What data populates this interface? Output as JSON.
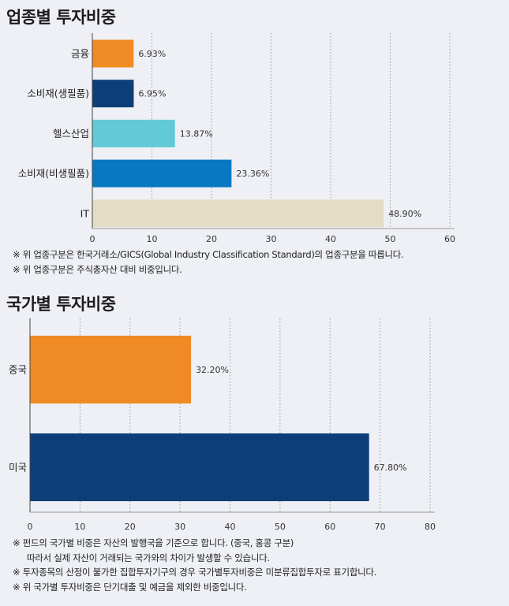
{
  "chart_data": [
    {
      "type": "bar",
      "orientation": "horizontal",
      "title": "업종별 투자비중",
      "categories": [
        "금융",
        "소비재(생필품)",
        "헬스산업",
        "소비재(비생필품)",
        "IT"
      ],
      "values": [
        6.93,
        6.95,
        13.87,
        23.36,
        48.9
      ],
      "value_labels": [
        "6.93%",
        "6.95%",
        "13.87%",
        "23.36%",
        "48.90%"
      ],
      "colors": [
        "#f08a24",
        "#0c3f78",
        "#62c9d7",
        "#0a77c2",
        "#e2ddc4"
      ],
      "xlim": [
        0,
        60
      ],
      "xticks": [
        0,
        10,
        20,
        30,
        40,
        50,
        60
      ],
      "grid": true,
      "notes": [
        "※ 위 업종구분은 한국거래소/GICS(Global Industry Classification Standard)의 업종구분을 따릅니다.",
        "※ 위 업종구분은 주식총자산 대비 비중입니다."
      ]
    },
    {
      "type": "bar",
      "orientation": "horizontal",
      "title": "국가별 투자비중",
      "categories": [
        "중국",
        "미국"
      ],
      "values": [
        32.2,
        67.8
      ],
      "value_labels": [
        "32.20%",
        "67.80%"
      ],
      "colors": [
        "#f08a24",
        "#0c3f78"
      ],
      "xlim": [
        0,
        80
      ],
      "xticks": [
        0,
        10,
        20,
        30,
        40,
        50,
        60,
        70,
        80
      ],
      "grid": true,
      "notes": [
        "※ 펀드의 국가별 비중은 자산의 발행국을 기준으로 합니다. (중국, 홍콩 구분)",
        "따라서 실제 자산이 거래되는 국가와의 차이가 발생할 수 있습니다.",
        "※ 투자종목의 산정이 불가한 집합투자기구의 경우 국가별투자비중은 미분류집합투자로 표기합니다.",
        "※ 위 국가별 투자비중은 단기대출 및 예금을 제외한 비중입니다."
      ]
    }
  ]
}
